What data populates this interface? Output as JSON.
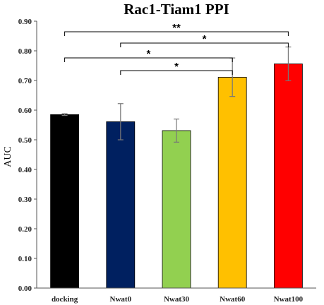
{
  "chart_data": {
    "type": "bar",
    "title": "Rac1-Tiam1 PPI",
    "xlabel": "",
    "ylabel": "AUC",
    "ylim": [
      0.0,
      0.9
    ],
    "yticks": [
      "0.00",
      "0.10",
      "0.20",
      "0.30",
      "0.40",
      "0.50",
      "0.60",
      "0.70",
      "0.80",
      "0.90"
    ],
    "grid": false,
    "legend": "none",
    "categories": [
      "docking",
      "Nwat0",
      "Nwat30",
      "Nwat60",
      "Nwat100"
    ],
    "values": [
      0.585,
      0.561,
      0.531,
      0.711,
      0.756
    ],
    "errors": [
      0.003,
      0.061,
      0.039,
      0.065,
      0.057
    ],
    "colors": [
      "#000000",
      "#002060",
      "#92d050",
      "#ffc000",
      "#ff0000"
    ],
    "significance": [
      {
        "from": 0,
        "to": 4,
        "label": "**"
      },
      {
        "from": 1,
        "to": 4,
        "label": "*"
      },
      {
        "from": 0,
        "to": 3,
        "label": "*"
      },
      {
        "from": 1,
        "to": 3,
        "label": "*"
      }
    ]
  }
}
